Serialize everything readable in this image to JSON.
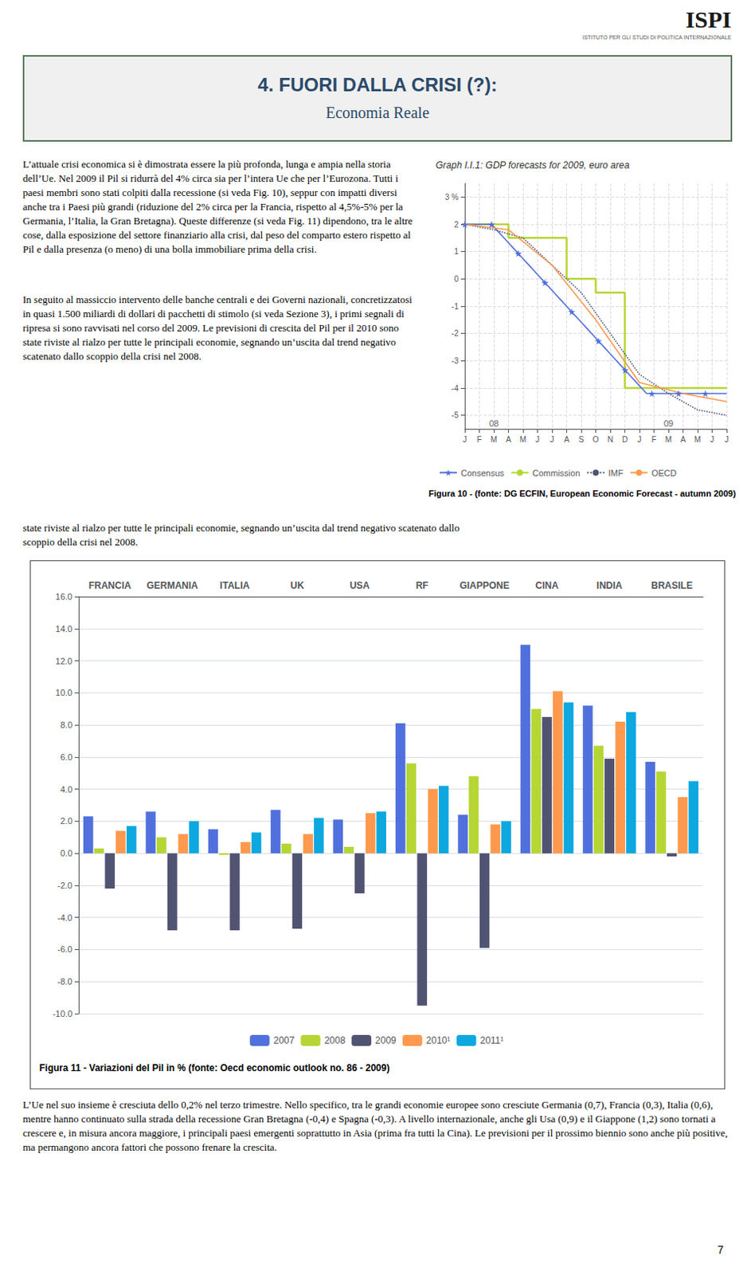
{
  "page": {
    "logo": "ISPI",
    "logo_subtitle": "ISTITUTO PER GLI STUDI DI POLITICA INTERNAZIONALE",
    "title": "4. FUORI DALLA CRISI (?):",
    "subtitle": "Economia Reale",
    "paragraphs": [
      "L’attuale crisi economica si è dimostrata essere la più profonda, lunga e ampia nella storia dell’Ue. Nel 2009 il Pil si ridurrà del 4% circa sia per l’intera Ue che per l’Eurozona. Tutti i paesi membri sono stati colpiti dalla recessione (si veda Fig. 10), seppur con impatti diversi anche tra i Paesi più grandi (riduzione del 2% circa per la Francia, rispetto al 4,5%-5% per la Germania, l’Italia, la Gran Bretagna). Queste differenze (si veda Fig. 11) dipendono, tra le altre cose, dalla esposizione del settore finanziario alla crisi, dal peso del comparto estero rispetto al Pil e dalla presenza (o meno) di una bolla immobiliare prima della crisi.",
      "In seguito al massiccio intervento delle banche centrali e dei Governi nazionali, concretizzatosi in quasi 1.500 miliardi di dollari di pacchetti di stimolo (si veda Sezione 3), i primi segnali di ripresa si sono ravvisati nel corso del 2009. Le previsioni di crescita del Pil per il 2010 sono state riviste al rialzo per tutte le principali economie, segnando un’uscita dal trend negativo scatenato dallo scoppio della crisi nel 2008.",
      "state riviste al rialzo per tutte le principali economie, segnando un’uscita dal trend negativo scatenato dallo\nscoppio della crisi nel 2008.",
      "L’Ue nel suo insieme è cresciuta dello 0,2% nel terzo trimestre. Nello specifico, tra le grandi economie europee sono cresciute Germania (0,7), Francia (0,3), Italia (0,6), mentre hanno continuato sulla strada della recessione Gran Bretagna (-0,4) e Spagna (-0,3). A livello internazionale, anche gli Usa (0,9) e il Giappone (1,2) sono tornati a crescere e, in misura ancora maggiore, i principali paesi emergenti soprattutto in Asia (prima fra tutti la Cina). Le previsioni per il prossimo biennio sono anche più positive, ma permangono ancora fattori che possono frenare la crescita."
    ],
    "page_number": "7"
  },
  "chart_data": [
    {
      "type": "line",
      "title": "Graph I.I.1: GDP forecasts for 2009, euro area",
      "caption": "Figura 10 - (fonte: DG ECFIN, European Economic Forecast - autumn 2009)",
      "xlim": [
        0,
        18
      ],
      "xticks": [
        {
          "value": 0,
          "label": "J"
        },
        {
          "value": 1,
          "label": "F"
        },
        {
          "value": 2,
          "label": "M"
        },
        {
          "value": 3,
          "label": "A"
        },
        {
          "value": 4,
          "label": "M"
        },
        {
          "value": 5,
          "label": "J"
        },
        {
          "value": 6,
          "label": "J"
        },
        {
          "value": 7,
          "label": "A"
        },
        {
          "value": 8,
          "label": "S"
        },
        {
          "value": 9,
          "label": "O"
        },
        {
          "value": 10,
          "label": "N"
        },
        {
          "value": 11,
          "label": "D"
        },
        {
          "value": 12,
          "label": "J"
        },
        {
          "value": 13,
          "label": "F"
        },
        {
          "value": 14,
          "label": "M"
        },
        {
          "value": 15,
          "label": "A"
        },
        {
          "value": 16,
          "label": "M"
        },
        {
          "value": 17,
          "label": "J"
        },
        {
          "value": 18,
          "label": "J"
        }
      ],
      "ylim": [
        -5.5,
        3.5
      ],
      "yticks": [
        -5,
        -4,
        -3,
        -2,
        -1,
        0,
        1,
        2,
        {
          "value": 3,
          "label": "3 %"
        }
      ],
      "grid": true,
      "legend": "lower left",
      "series": [
        {
          "name": "Consensus",
          "marker": "star",
          "x": [
            0,
            0.3673,
            0.7347,
            1.102,
            1.4694,
            1.8367,
            2.2041,
            2.5714,
            2.9388,
            3.3061,
            3.6735,
            4.0408,
            4.4082,
            4.7755,
            5.1429,
            5.5102,
            5.8776,
            6.2449,
            6.6122,
            6.9796,
            7.3469,
            7.7143,
            8.0816,
            8.449,
            8.8163,
            9.1837,
            9.551,
            9.9184,
            10.2857,
            10.6531,
            11.0204,
            11.3878,
            11.7551,
            12.1224,
            12.4898,
            12.8571,
            13.2245,
            13.5918,
            13.9592,
            14.3265,
            14.6939,
            15.0612,
            15.4286,
            15.7959,
            16.1633,
            16.5306,
            16.898,
            17.2653,
            17.6327,
            18
          ],
          "values": [
            2.0,
            2.0,
            2.0,
            2.0,
            2.0,
            2.0,
            1.7862,
            1.5724,
            1.3586,
            1.1448,
            0.931,
            0.7172,
            0.5034,
            0.2897,
            0.0759,
            -0.1379,
            -0.3517,
            -0.5655,
            -0.7793,
            -0.9931,
            -1.2069,
            -1.4207,
            -1.6345,
            -1.8483,
            -2.0621,
            -2.2759,
            -2.4897,
            -2.7034,
            -2.9172,
            -3.131,
            -3.3448,
            -3.5586,
            -3.7724,
            -3.9862,
            -4.2,
            -4.2,
            -4.2,
            -4.2,
            -4.2,
            -4.2,
            -4.2,
            -4.2,
            -4.2,
            -4.2,
            -4.2,
            -4.2,
            -4.2,
            -4.2,
            -4.2,
            -4.2
          ]
        },
        {
          "name": "Commission",
          "type": "step",
          "x": [
            0,
            1,
            2,
            3,
            4,
            5,
            6,
            7,
            8,
            9,
            9,
            10,
            11,
            12,
            13,
            14,
            15,
            16,
            17,
            18
          ],
          "values": [
            2.0,
            2.0,
            2.0,
            1.5,
            1.5,
            1.5,
            1.5,
            0.0,
            0.0,
            0.0,
            -0.5,
            -0.5,
            -4.0,
            -4.0,
            -4.0,
            -4.0,
            -4.0,
            -4.0,
            -4.0,
            -4.0
          ]
        },
        {
          "name": "IMF",
          "line_style": "dotted",
          "x": [
            0,
            2,
            4,
            6,
            8,
            10,
            12,
            14,
            16,
            18
          ],
          "values": [
            2.0,
            1.8,
            1.5,
            0.5,
            -0.5,
            -2.0,
            -3.5,
            -4.2,
            -4.8,
            -5.0
          ]
        },
        {
          "name": "OECD",
          "x": [
            0,
            3,
            6,
            9,
            12,
            15,
            18
          ],
          "values": [
            2.0,
            1.8,
            0.5,
            -1.5,
            -3.8,
            -4.2,
            -4.5
          ]
        }
      ],
      "annotations": [
        {
          "text": "08",
          "x": 2,
          "y": -5.3
        },
        {
          "text": "09",
          "x": 14,
          "y": -5.3
        }
      ]
    },
    {
      "type": "bar",
      "caption": "Figura 11 - Variazioni del Pil in % (fonte: Oecd economic outlook no. 86 - 2009)",
      "categories": [
        "FRANCIA",
        "GERMANIA",
        "ITALIA",
        "UK",
        "USA",
        "RF",
        "GIAPPONE",
        "CINA",
        "INDIA",
        "BRASILE"
      ],
      "series": [
        {
          "name": "2007",
          "values": [
            2.3,
            2.6,
            1.5,
            2.7,
            2.1,
            8.1,
            2.4,
            13.0,
            9.2,
            5.7
          ]
        },
        {
          "name": "2008",
          "values": [
            0.3,
            1.0,
            -0.1,
            0.6,
            0.4,
            5.6,
            4.8,
            9.0,
            6.7,
            5.1
          ]
        },
        {
          "name": "2009",
          "values": [
            -2.2,
            -4.8,
            -4.8,
            -4.7,
            -2.5,
            -9.5,
            -5.9,
            8.5,
            5.9,
            -0.2
          ]
        },
        {
          "name": "2010¹",
          "values": [
            1.4,
            1.2,
            0.7,
            1.2,
            2.5,
            4.0,
            1.8,
            10.1,
            8.2,
            3.5
          ]
        },
        {
          "name": "2011¹",
          "values": [
            1.7,
            2.0,
            1.3,
            2.2,
            2.6,
            4.2,
            2.0,
            9.4,
            8.8,
            4.5
          ]
        }
      ],
      "ylim": [
        -10,
        16
      ],
      "yticks": [
        {
          "value": -10,
          "label": "-10.0"
        },
        {
          "value": -8,
          "label": "-8.0"
        },
        {
          "value": -6,
          "label": "-6.0"
        },
        {
          "value": -4,
          "label": "-4.0"
        },
        {
          "value": -2,
          "label": "-2.0"
        },
        {
          "value": 0,
          "label": "0.0"
        },
        {
          "value": 2,
          "label": "2.0"
        },
        {
          "value": 4,
          "label": "4.0"
        },
        {
          "value": 6,
          "label": "6.0"
        },
        {
          "value": 8,
          "label": "8.0"
        },
        {
          "value": 10,
          "label": "10.0"
        },
        {
          "value": 12,
          "label": "12.0"
        },
        {
          "value": 14,
          "label": "14.0"
        },
        {
          "value": 16,
          "label": "16.0"
        }
      ],
      "grid": true,
      "legend": "lower center"
    }
  ]
}
